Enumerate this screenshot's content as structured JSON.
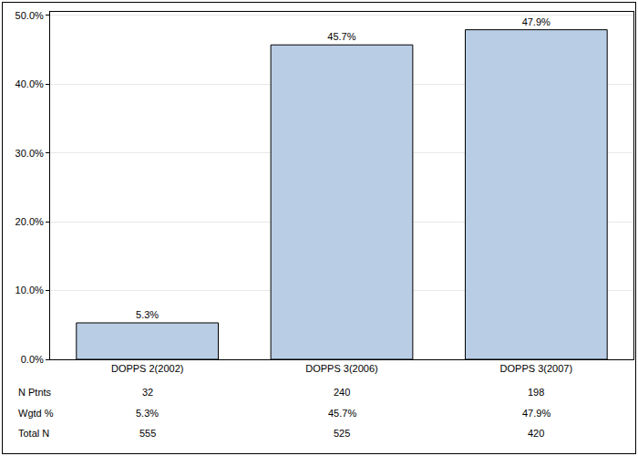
{
  "chart_data": {
    "type": "bar",
    "categories": [
      "DOPPS 2(2002)",
      "DOPPS 3(2006)",
      "DOPPS 3(2007)"
    ],
    "values": [
      5.3,
      45.7,
      47.9
    ],
    "value_labels": [
      "5.3%",
      "45.7%",
      "47.9%"
    ],
    "color": "#b9cde5",
    "ylim": [
      0,
      50.5
    ],
    "yticks": [
      {
        "value": 0,
        "label": "0.0%"
      },
      {
        "value": 10,
        "label": "10.0%"
      },
      {
        "value": 20,
        "label": "20.0%"
      },
      {
        "value": 30,
        "label": "30.0%"
      },
      {
        "value": 40,
        "label": "40.0%"
      },
      {
        "value": 50,
        "label": "50.0%"
      }
    ],
    "grid": true,
    "data_labels": true
  },
  "table": {
    "rows": [
      {
        "label": "N Ptnts",
        "cells": [
          "32",
          "240",
          "198"
        ]
      },
      {
        "label": "Wgtd %",
        "cells": [
          "5.3%",
          "45.7%",
          "47.9%"
        ]
      },
      {
        "label": "Total N",
        "cells": [
          "555",
          "525",
          "420"
        ]
      }
    ]
  }
}
